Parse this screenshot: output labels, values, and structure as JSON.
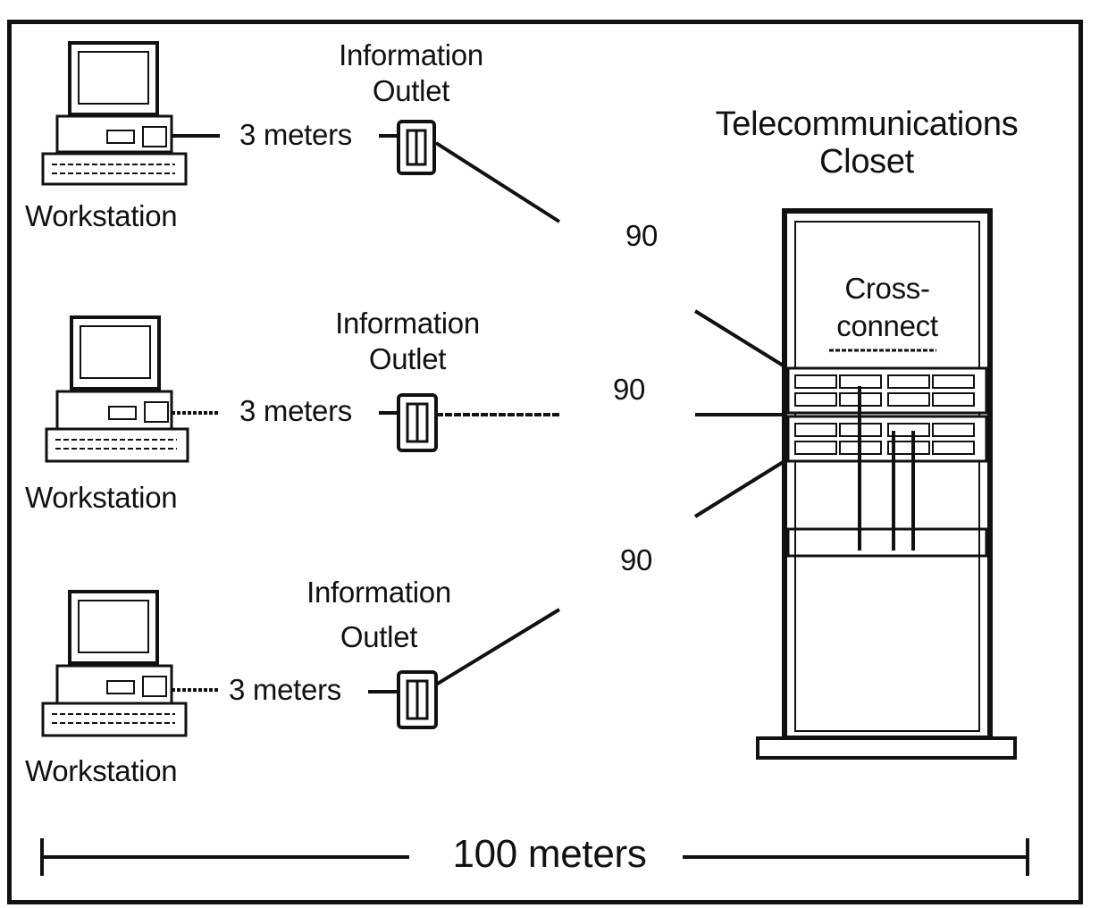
{
  "workstations": [
    {
      "label": "Workstation",
      "distance": "3 meters",
      "outlet_label_line1": "Information",
      "outlet_label_line2": "Outlet",
      "run": "90"
    },
    {
      "label": "Workstation",
      "distance": "3 meters",
      "outlet_label_line1": "Information",
      "outlet_label_line2": "Outlet",
      "run": "90"
    },
    {
      "label": "Workstation",
      "distance": "3 meters",
      "outlet_label_line1": "Information",
      "outlet_label_line2": "Outlet",
      "run": "90"
    }
  ],
  "closet": {
    "title_line1": "Telecommunications",
    "title_line2": "Closet",
    "cross_line1": "Cross-",
    "cross_line2": "connect"
  },
  "total": "100 meters"
}
